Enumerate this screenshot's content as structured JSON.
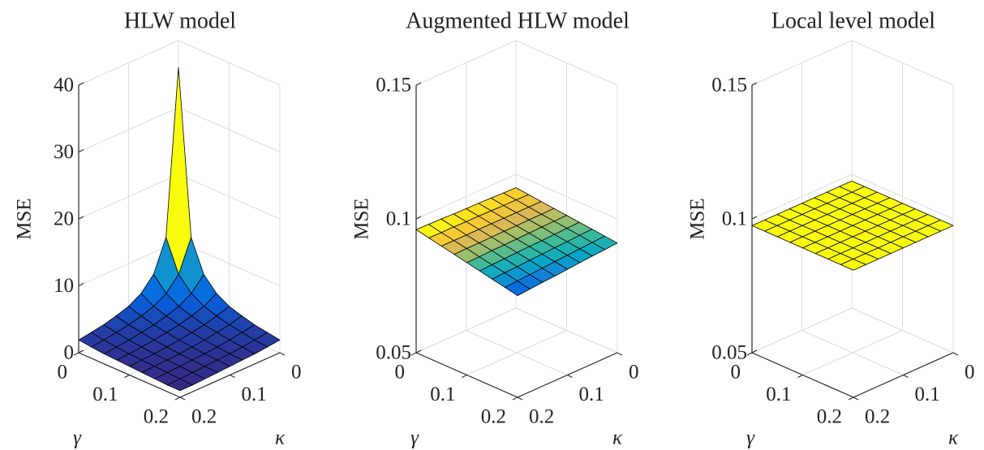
{
  "chart_data": [
    {
      "type": "surface",
      "title": "HLW model",
      "xlabel": "γ",
      "ylabel": "κ",
      "zlabel": "MSE",
      "colormap": "parula",
      "edgecolor": "#000000",
      "grid": true,
      "x": [
        0,
        0.025,
        0.05,
        0.075,
        0.1,
        0.125,
        0.15,
        0.175,
        0.2
      ],
      "y": [
        0,
        0.025,
        0.05,
        0.075,
        0.1,
        0.125,
        0.15,
        0.175,
        0.2
      ],
      "z": [
        [
          36,
          11.4,
          6.7,
          4.7,
          3.6,
          3.0,
          2.5,
          2.2,
          1.9
        ],
        [
          11.4,
          6.7,
          4.7,
          3.6,
          3.0,
          2.5,
          2.2,
          1.9,
          1.7
        ],
        [
          6.7,
          4.7,
          3.6,
          3.0,
          2.5,
          2.2,
          1.9,
          1.7,
          1.5
        ],
        [
          4.7,
          3.6,
          3.0,
          2.5,
          2.2,
          1.9,
          1.7,
          1.5,
          1.4
        ],
        [
          3.6,
          3.0,
          2.5,
          2.2,
          1.9,
          1.7,
          1.5,
          1.4,
          1.3
        ],
        [
          3.0,
          2.5,
          2.2,
          1.9,
          1.7,
          1.5,
          1.4,
          1.3,
          1.2
        ],
        [
          2.5,
          2.2,
          1.9,
          1.7,
          1.5,
          1.4,
          1.3,
          1.2,
          1.1
        ],
        [
          2.2,
          1.9,
          1.7,
          1.5,
          1.4,
          1.3,
          1.2,
          1.1,
          1.0
        ],
        [
          1.9,
          1.7,
          1.5,
          1.4,
          1.3,
          1.2,
          1.1,
          1.0,
          1.0
        ]
      ],
      "xlim": [
        0,
        0.2
      ],
      "xticks": [
        0,
        0.1,
        0.2
      ],
      "ylim": [
        0,
        0.2
      ],
      "yticks": [
        0,
        0.1,
        0.2
      ],
      "zlim": [
        0,
        40
      ],
      "zticks": [
        0,
        10,
        20,
        30,
        40
      ]
    },
    {
      "type": "surface",
      "title": "Augmented HLW model",
      "xlabel": "γ",
      "ylabel": "κ",
      "zlabel": "MSE",
      "colormap": "parula",
      "edgecolor": "#000000",
      "grid": true,
      "x": [
        0,
        0.025,
        0.05,
        0.075,
        0.1,
        0.125,
        0.15,
        0.175,
        0.2
      ],
      "y": [
        0,
        0.025,
        0.05,
        0.075,
        0.1,
        0.125,
        0.15,
        0.175,
        0.2
      ],
      "z": [
        [
          0.095,
          0.0951,
          0.0953,
          0.0954,
          0.0955,
          0.0956,
          0.0958,
          0.0959,
          0.096
        ],
        [
          0.0945,
          0.0946,
          0.0946,
          0.0947,
          0.0948,
          0.0948,
          0.0949,
          0.0949,
          0.095
        ],
        [
          0.094,
          0.094,
          0.094,
          0.094,
          0.094,
          0.094,
          0.094,
          0.094,
          0.094
        ],
        [
          0.0935,
          0.0934,
          0.0934,
          0.0933,
          0.0933,
          0.0932,
          0.0931,
          0.0931,
          0.093
        ],
        [
          0.093,
          0.0929,
          0.0928,
          0.0926,
          0.0925,
          0.0924,
          0.0923,
          0.0921,
          0.092
        ],
        [
          0.0925,
          0.0923,
          0.0921,
          0.0919,
          0.0918,
          0.0916,
          0.0914,
          0.0912,
          0.091
        ],
        [
          0.092,
          0.0918,
          0.0915,
          0.0913,
          0.091,
          0.0908,
          0.0905,
          0.0903,
          0.09
        ],
        [
          0.0915,
          0.0912,
          0.0909,
          0.0906,
          0.0903,
          0.0899,
          0.0896,
          0.0893,
          0.089
        ],
        [
          0.091,
          0.0906,
          0.0903,
          0.0899,
          0.0895,
          0.0891,
          0.0888,
          0.0884,
          0.088
        ]
      ],
      "xlim": [
        0,
        0.2
      ],
      "xticks": [
        0,
        0.1,
        0.2
      ],
      "ylim": [
        0,
        0.2
      ],
      "yticks": [
        0,
        0.1,
        0.2
      ],
      "zlim": [
        0.05,
        0.15
      ],
      "zticks": [
        0.05,
        0.1,
        0.15
      ]
    },
    {
      "type": "surface",
      "title": "Local level model",
      "xlabel": "γ",
      "ylabel": "κ",
      "zlabel": "MSE",
      "colormap": "parula",
      "edgecolor": "#000000",
      "grid": true,
      "x": [
        0,
        0.025,
        0.05,
        0.075,
        0.1,
        0.125,
        0.15,
        0.175,
        0.2
      ],
      "y": [
        0,
        0.025,
        0.05,
        0.075,
        0.1,
        0.125,
        0.15,
        0.175,
        0.2
      ],
      "z": [
        [
          0.0975,
          0.0975,
          0.0975,
          0.0975,
          0.0975,
          0.0975,
          0.0975,
          0.0975,
          0.0975
        ],
        [
          0.0975,
          0.0975,
          0.0975,
          0.0975,
          0.0975,
          0.0975,
          0.0975,
          0.0975,
          0.0975
        ],
        [
          0.0975,
          0.0975,
          0.0975,
          0.0975,
          0.0975,
          0.0975,
          0.0975,
          0.0975,
          0.0975
        ],
        [
          0.0975,
          0.0975,
          0.0975,
          0.0975,
          0.0975,
          0.0975,
          0.0975,
          0.0975,
          0.0975
        ],
        [
          0.0975,
          0.0975,
          0.0975,
          0.0975,
          0.0975,
          0.0975,
          0.0975,
          0.0975,
          0.0975
        ],
        [
          0.0975,
          0.0975,
          0.0975,
          0.0975,
          0.0975,
          0.0975,
          0.0975,
          0.0975,
          0.0975
        ],
        [
          0.0975,
          0.0975,
          0.0975,
          0.0975,
          0.0975,
          0.0975,
          0.0975,
          0.0975,
          0.0975
        ],
        [
          0.0975,
          0.0975,
          0.0975,
          0.0975,
          0.0975,
          0.0975,
          0.0975,
          0.0975,
          0.0975
        ],
        [
          0.0975,
          0.0975,
          0.0975,
          0.0975,
          0.0975,
          0.0975,
          0.0975,
          0.0975,
          0.0975
        ]
      ],
      "xlim": [
        0,
        0.2
      ],
      "xticks": [
        0,
        0.1,
        0.2
      ],
      "ylim": [
        0,
        0.2
      ],
      "yticks": [
        0,
        0.1,
        0.2
      ],
      "zlim": [
        0.05,
        0.15
      ],
      "zticks": [
        0.05,
        0.1,
        0.15
      ]
    }
  ]
}
